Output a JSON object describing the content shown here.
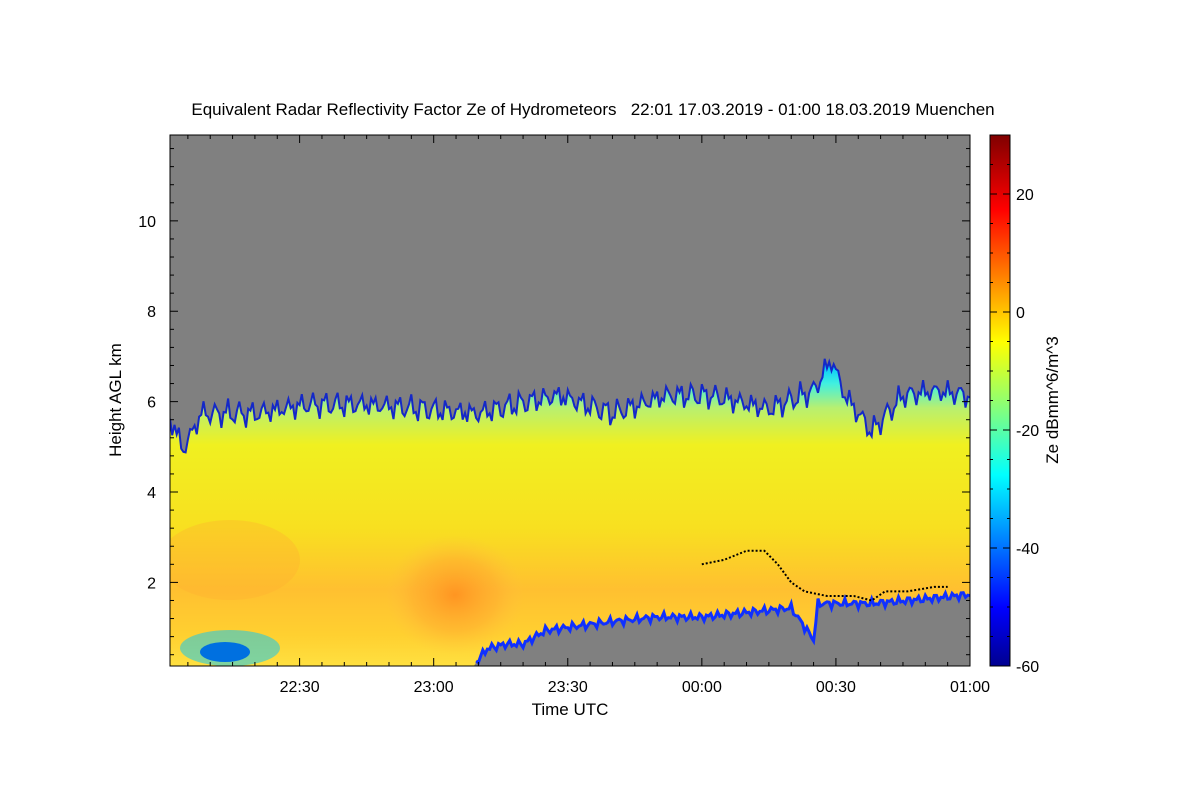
{
  "chart_data": {
    "type": "heatmap",
    "title": "Equivalent Radar Reflectivity Factor Ze of Hydrometeors   22:01 17.03.2019 - 01:00 18.03.2019 Muenchen",
    "xlabel": "Time UTC",
    "ylabel": "Height AGL km",
    "xlim": [
      1321,
      1500
    ],
    "ylim": [
      0.15,
      11.9
    ],
    "x_tick_labels": [
      "22:30",
      "23:00",
      "23:30",
      "00:00",
      "00:30",
      "01:00"
    ],
    "x_tick_values": [
      1350,
      1380,
      1410,
      1440,
      1470,
      1500
    ],
    "y_tick_labels": [
      "2",
      "4",
      "6",
      "8",
      "10"
    ],
    "y_tick_values": [
      2,
      4,
      6,
      8,
      10
    ],
    "colorbar": {
      "label": "Ze dBmm^6/m^3",
      "range": [
        -60,
        30
      ],
      "tick_labels": [
        "-60",
        "-40",
        "-20",
        "0",
        "20"
      ],
      "tick_values": [
        -60,
        -40,
        -20,
        0,
        20
      ],
      "colormap": "jet"
    },
    "no_signal_color": "#808080",
    "echo_top_km": [
      {
        "t": 1321,
        "h": 5.7
      },
      {
        "t": 1324,
        "h": 5.0
      },
      {
        "t": 1328,
        "h": 5.8
      },
      {
        "t": 1340,
        "h": 5.8
      },
      {
        "t": 1352,
        "h": 6.0
      },
      {
        "t": 1365,
        "h": 6.0
      },
      {
        "t": 1378,
        "h": 5.9
      },
      {
        "t": 1390,
        "h": 5.8
      },
      {
        "t": 1398,
        "h": 6.0
      },
      {
        "t": 1408,
        "h": 6.2
      },
      {
        "t": 1420,
        "h": 5.8
      },
      {
        "t": 1432,
        "h": 6.2
      },
      {
        "t": 1442,
        "h": 6.2
      },
      {
        "t": 1455,
        "h": 5.9
      },
      {
        "t": 1465,
        "h": 6.3
      },
      {
        "t": 1469,
        "h": 7.0
      },
      {
        "t": 1472,
        "h": 6.2
      },
      {
        "t": 1478,
        "h": 5.4
      },
      {
        "t": 1485,
        "h": 6.2
      },
      {
        "t": 1492,
        "h": 6.3
      },
      {
        "t": 1500,
        "h": 6.2
      }
    ],
    "echo_base_km": [
      {
        "t": 1321,
        "h": 0.15
      },
      {
        "t": 1389,
        "h": 0.15
      },
      {
        "t": 1392,
        "h": 0.5
      },
      {
        "t": 1396,
        "h": 0.6
      },
      {
        "t": 1400,
        "h": 0.6
      },
      {
        "t": 1405,
        "h": 0.9
      },
      {
        "t": 1412,
        "h": 1.0
      },
      {
        "t": 1420,
        "h": 1.1
      },
      {
        "t": 1430,
        "h": 1.2
      },
      {
        "t": 1440,
        "h": 1.2
      },
      {
        "t": 1450,
        "h": 1.3
      },
      {
        "t": 1460,
        "h": 1.4
      },
      {
        "t": 1465,
        "h": 0.7
      },
      {
        "t": 1466,
        "h": 1.5
      },
      {
        "t": 1478,
        "h": 1.5
      },
      {
        "t": 1490,
        "h": 1.6
      },
      {
        "t": 1500,
        "h": 1.7
      }
    ],
    "melting_layer_km": [
      {
        "t": 1440,
        "h": 2.4
      },
      {
        "t": 1445,
        "h": 2.5
      },
      {
        "t": 1450,
        "h": 2.7
      },
      {
        "t": 1454,
        "h": 2.7
      },
      {
        "t": 1457,
        "h": 2.4
      },
      {
        "t": 1460,
        "h": 2.0
      },
      {
        "t": 1463,
        "h": 1.8
      },
      {
        "t": 1468,
        "h": 1.7
      },
      {
        "t": 1474,
        "h": 1.7
      },
      {
        "t": 1478,
        "h": 1.6
      },
      {
        "t": 1481,
        "h": 1.8
      },
      {
        "t": 1486,
        "h": 1.8
      },
      {
        "t": 1492,
        "h": 1.9
      },
      {
        "t": 1495,
        "h": 1.9
      }
    ]
  }
}
